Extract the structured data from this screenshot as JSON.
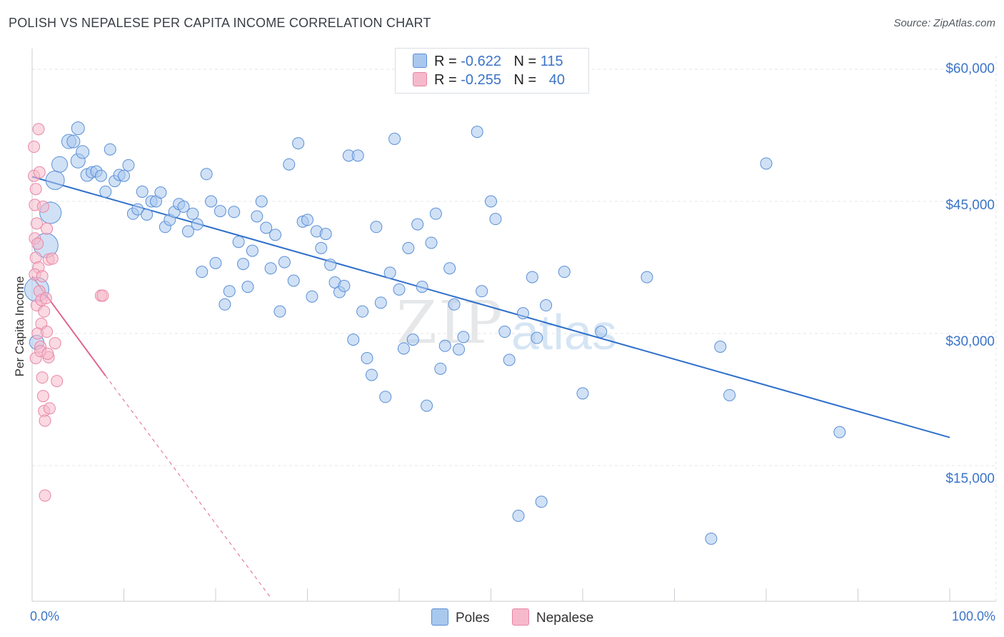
{
  "title": "POLISH VS NEPALESE PER CAPITA INCOME CORRELATION CHART",
  "source": "Source: ZipAtlas.com",
  "watermark": {
    "zip": "ZIP",
    "atlas": "atlas"
  },
  "stats": [
    {
      "r_label": "R =",
      "r_value": "-0.622",
      "n_label": "N =",
      "n_value": "115"
    },
    {
      "r_label": "R =",
      "r_value": "-0.255",
      "n_label": "N =",
      "n_value": "40"
    }
  ],
  "legend": {
    "poles": "Poles",
    "nepalese": "Nepalese"
  },
  "colors": {
    "poles_fill": "#a9c8ee",
    "poles_stroke": "#5b8fd6",
    "poles_line": "#2e6fcb",
    "nepalese_fill": "#f6b9cb",
    "nepalese_stroke": "#e986a6",
    "nepalese_line": "#e06690",
    "axis_text": "#3b74c8",
    "grid": "#e3e6ea"
  },
  "chart_data": {
    "type": "scatter",
    "title": "POLISH VS NEPALESE PER CAPITA INCOME CORRELATION CHART",
    "xlabel": "",
    "ylabel": "Per Capita Income",
    "xlim": [
      0,
      100
    ],
    "ylim": [
      0,
      65000
    ],
    "x_tick_labels": [
      "0.0%",
      "100.0%"
    ],
    "y_ticks": [
      15000,
      30000,
      45000,
      60000
    ],
    "y_tick_labels": [
      "$15,000",
      "$30,000",
      "$45,000",
      "$60,000"
    ],
    "grid": true,
    "legend_position": "bottom-center",
    "series": [
      {
        "name": "Poles",
        "r": -0.622,
        "n": 115,
        "trend": {
          "x": [
            0,
            100
          ],
          "y": [
            47800,
            18200
          ]
        },
        "points": [
          [
            0.5,
            29000,
            10
          ],
          [
            0.5,
            35000,
            17
          ],
          [
            1.5,
            40000,
            17
          ],
          [
            2,
            43700,
            15
          ],
          [
            2.5,
            47400,
            13
          ],
          [
            3,
            49200,
            11
          ],
          [
            4,
            51800,
            10
          ],
          [
            5,
            49600,
            10
          ],
          [
            4.5,
            51800,
            9
          ],
          [
            5,
            53300,
            9
          ],
          [
            5.5,
            50600,
            9
          ],
          [
            6,
            48000,
            9
          ],
          [
            6.5,
            48300,
            8
          ],
          [
            7,
            48400,
            8
          ],
          [
            7.5,
            47900,
            8
          ],
          [
            8,
            46100,
            8
          ],
          [
            8.5,
            50900,
            8
          ],
          [
            9,
            47300,
            8
          ],
          [
            9.5,
            48000,
            8
          ],
          [
            10,
            47900,
            8
          ],
          [
            10.5,
            49100,
            8
          ],
          [
            11,
            43600,
            8
          ],
          [
            11.5,
            44100,
            8
          ],
          [
            12,
            46100,
            8
          ],
          [
            12.5,
            43500,
            8
          ],
          [
            13,
            45000,
            8
          ],
          [
            13.5,
            45000,
            8
          ],
          [
            14,
            46000,
            8
          ],
          [
            14.5,
            42100,
            8
          ],
          [
            15,
            42900,
            8
          ],
          [
            15.5,
            43800,
            8
          ],
          [
            16,
            44700,
            8
          ],
          [
            16.5,
            44400,
            8
          ],
          [
            17,
            41600,
            8
          ],
          [
            17.5,
            43600,
            8
          ],
          [
            18,
            42400,
            8
          ],
          [
            18.5,
            37000,
            8
          ],
          [
            19,
            48100,
            8
          ],
          [
            19.5,
            45000,
            8
          ],
          [
            20,
            38000,
            8
          ],
          [
            20.5,
            43900,
            8
          ],
          [
            21,
            33300,
            8
          ],
          [
            21.5,
            34800,
            8
          ],
          [
            22,
            43800,
            8
          ],
          [
            22.5,
            40400,
            8
          ],
          [
            23,
            37900,
            8
          ],
          [
            23.5,
            35300,
            8
          ],
          [
            24,
            39400,
            8
          ],
          [
            24.5,
            43300,
            8
          ],
          [
            25,
            45000,
            8
          ],
          [
            25.5,
            42000,
            8
          ],
          [
            26,
            37400,
            8
          ],
          [
            26.5,
            41200,
            8
          ],
          [
            27,
            32500,
            8
          ],
          [
            27.5,
            38100,
            8
          ],
          [
            28,
            49200,
            8
          ],
          [
            28.5,
            36000,
            8
          ],
          [
            29,
            51600,
            8
          ],
          [
            29.5,
            42700,
            8
          ],
          [
            30,
            42900,
            8
          ],
          [
            30.5,
            34200,
            8
          ],
          [
            31,
            41600,
            8
          ],
          [
            31.5,
            39700,
            8
          ],
          [
            32,
            41300,
            8
          ],
          [
            32.5,
            37800,
            8
          ],
          [
            33,
            35800,
            8
          ],
          [
            33.5,
            34700,
            8
          ],
          [
            34,
            35400,
            8
          ],
          [
            34.5,
            50200,
            8
          ],
          [
            35,
            29300,
            8
          ],
          [
            35.5,
            50200,
            8
          ],
          [
            36,
            32500,
            8
          ],
          [
            36.5,
            27200,
            8
          ],
          [
            37,
            25300,
            8
          ],
          [
            37.5,
            42100,
            8
          ],
          [
            38,
            33500,
            8
          ],
          [
            38.5,
            22800,
            8
          ],
          [
            39,
            36900,
            8
          ],
          [
            39.5,
            52100,
            8
          ],
          [
            40,
            35000,
            8
          ],
          [
            40.5,
            28300,
            8
          ],
          [
            41,
            39700,
            8
          ],
          [
            41.5,
            29300,
            8
          ],
          [
            42,
            42400,
            8
          ],
          [
            42.5,
            35300,
            8
          ],
          [
            43,
            21800,
            8
          ],
          [
            43.5,
            40300,
            8
          ],
          [
            44,
            43600,
            8
          ],
          [
            44.5,
            26000,
            8
          ],
          [
            45,
            28600,
            8
          ],
          [
            45.5,
            37400,
            8
          ],
          [
            46,
            33300,
            8
          ],
          [
            46.5,
            28200,
            8
          ],
          [
            47,
            29600,
            8
          ],
          [
            48.5,
            52900,
            8
          ],
          [
            49,
            34800,
            8
          ],
          [
            50,
            45000,
            8
          ],
          [
            50.5,
            43000,
            8
          ],
          [
            51.5,
            30200,
            8
          ],
          [
            52,
            27000,
            8
          ],
          [
            53,
            9300,
            8
          ],
          [
            53.5,
            32300,
            8
          ],
          [
            54.5,
            36400,
            8
          ],
          [
            55,
            29500,
            8
          ],
          [
            55.5,
            10900,
            8
          ],
          [
            56,
            33200,
            8
          ],
          [
            58,
            37000,
            8
          ],
          [
            60,
            23200,
            8
          ],
          [
            62,
            30200,
            8
          ],
          [
            67,
            36400,
            8
          ],
          [
            74,
            6700,
            8
          ],
          [
            75,
            28500,
            8
          ],
          [
            76,
            23000,
            8
          ],
          [
            80,
            49300,
            8
          ],
          [
            88,
            18800,
            8
          ]
        ]
      },
      {
        "name": "Nepalese",
        "r": -0.255,
        "n": 40,
        "trend": {
          "x": [
            0,
            8
          ],
          "y": [
            36500,
            25200
          ]
        },
        "trend_extension": {
          "x": [
            8,
            26
          ],
          "y": [
            25200,
            0
          ]
        },
        "points": [
          [
            0.2,
            51200,
            8
          ],
          [
            0.2,
            47900,
            8
          ],
          [
            0.4,
            46400,
            8
          ],
          [
            0.3,
            44600,
            8
          ],
          [
            0.5,
            42500,
            8
          ],
          [
            0.3,
            40800,
            8
          ],
          [
            0.6,
            40200,
            8
          ],
          [
            0.4,
            38600,
            8
          ],
          [
            0.7,
            37500,
            8
          ],
          [
            0.3,
            36700,
            8
          ],
          [
            0.8,
            34800,
            8
          ],
          [
            0.5,
            33200,
            8
          ],
          [
            1.0,
            31100,
            8
          ],
          [
            0.6,
            30000,
            8
          ],
          [
            0.9,
            28500,
            8
          ],
          [
            0.4,
            27200,
            8
          ],
          [
            1.1,
            25000,
            8
          ],
          [
            1.2,
            22900,
            8
          ],
          [
            1.3,
            21200,
            8
          ],
          [
            1.4,
            20100,
            8
          ],
          [
            1.0,
            33800,
            8
          ],
          [
            1.3,
            32500,
            8
          ],
          [
            1.5,
            34000,
            8
          ],
          [
            1.6,
            30200,
            8
          ],
          [
            1.8,
            27300,
            8
          ],
          [
            1.9,
            21500,
            8
          ],
          [
            0.7,
            53200,
            8
          ],
          [
            0.8,
            48300,
            8
          ],
          [
            1.2,
            44400,
            8
          ],
          [
            1.6,
            41900,
            8
          ],
          [
            1.8,
            38400,
            8
          ],
          [
            2.2,
            38500,
            8
          ],
          [
            2.5,
            28900,
            8
          ],
          [
            2.7,
            24600,
            8
          ],
          [
            7.5,
            34300,
            8
          ],
          [
            7.7,
            34300,
            8
          ],
          [
            1.4,
            11600,
            8
          ],
          [
            0.9,
            28000,
            8
          ],
          [
            1.1,
            36500,
            8
          ],
          [
            1.7,
            27700,
            8
          ]
        ]
      }
    ]
  }
}
